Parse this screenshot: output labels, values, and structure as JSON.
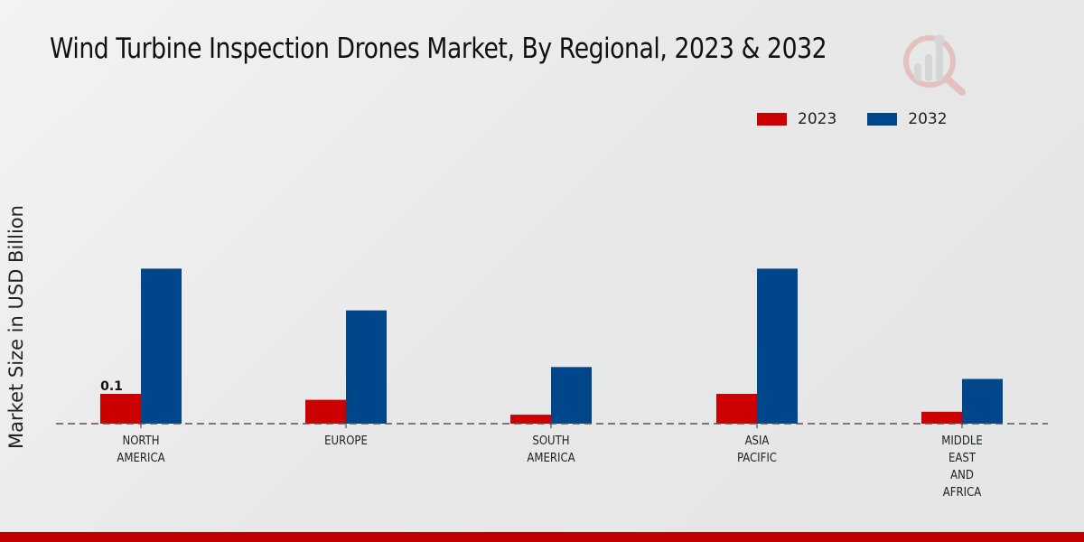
{
  "header": {
    "title": "Wind Turbine Inspection Drones Market, By Regional, 2023 & 2032"
  },
  "watermark": {
    "icon": "magnifier-bar-chart-logo-icon"
  },
  "colors": {
    "series_2023": "#cc0000",
    "series_2032": "#00468b",
    "bottom_bar": "#c00000"
  },
  "chart_data": {
    "type": "bar",
    "title": "Wind Turbine Inspection Drones Market, By Regional, 2023 & 2032",
    "xlabel": "",
    "ylabel": "Market Size in USD Billion",
    "categories": [
      "NORTH AMERICA",
      "EUROPE",
      "SOUTH AMERICA",
      "ASIA PACIFIC",
      "MIDDLE EAST AND AFRICA"
    ],
    "category_lines": [
      [
        "NORTH",
        "AMERICA"
      ],
      [
        "EUROPE"
      ],
      [
        "SOUTH",
        "AMERICA"
      ],
      [
        "ASIA",
        "PACIFIC"
      ],
      [
        "MIDDLE",
        "EAST",
        "AND",
        "AFRICA"
      ]
    ],
    "series": [
      {
        "name": "2023",
        "color": "#cc0000",
        "values": [
          0.1,
          0.08,
          0.03,
          0.1,
          0.04
        ]
      },
      {
        "name": "2032",
        "color": "#00468b",
        "values": [
          0.52,
          0.38,
          0.19,
          0.52,
          0.15
        ]
      }
    ],
    "data_labels": [
      {
        "series": "2023",
        "category": "NORTH AMERICA",
        "text": "0.1"
      }
    ],
    "ylim": [
      0,
      0.6
    ],
    "grid": false,
    "baseline": "dashed",
    "legend_position": "top-right"
  },
  "legend": {
    "items": [
      {
        "label": "2023"
      },
      {
        "label": "2032"
      }
    ]
  }
}
